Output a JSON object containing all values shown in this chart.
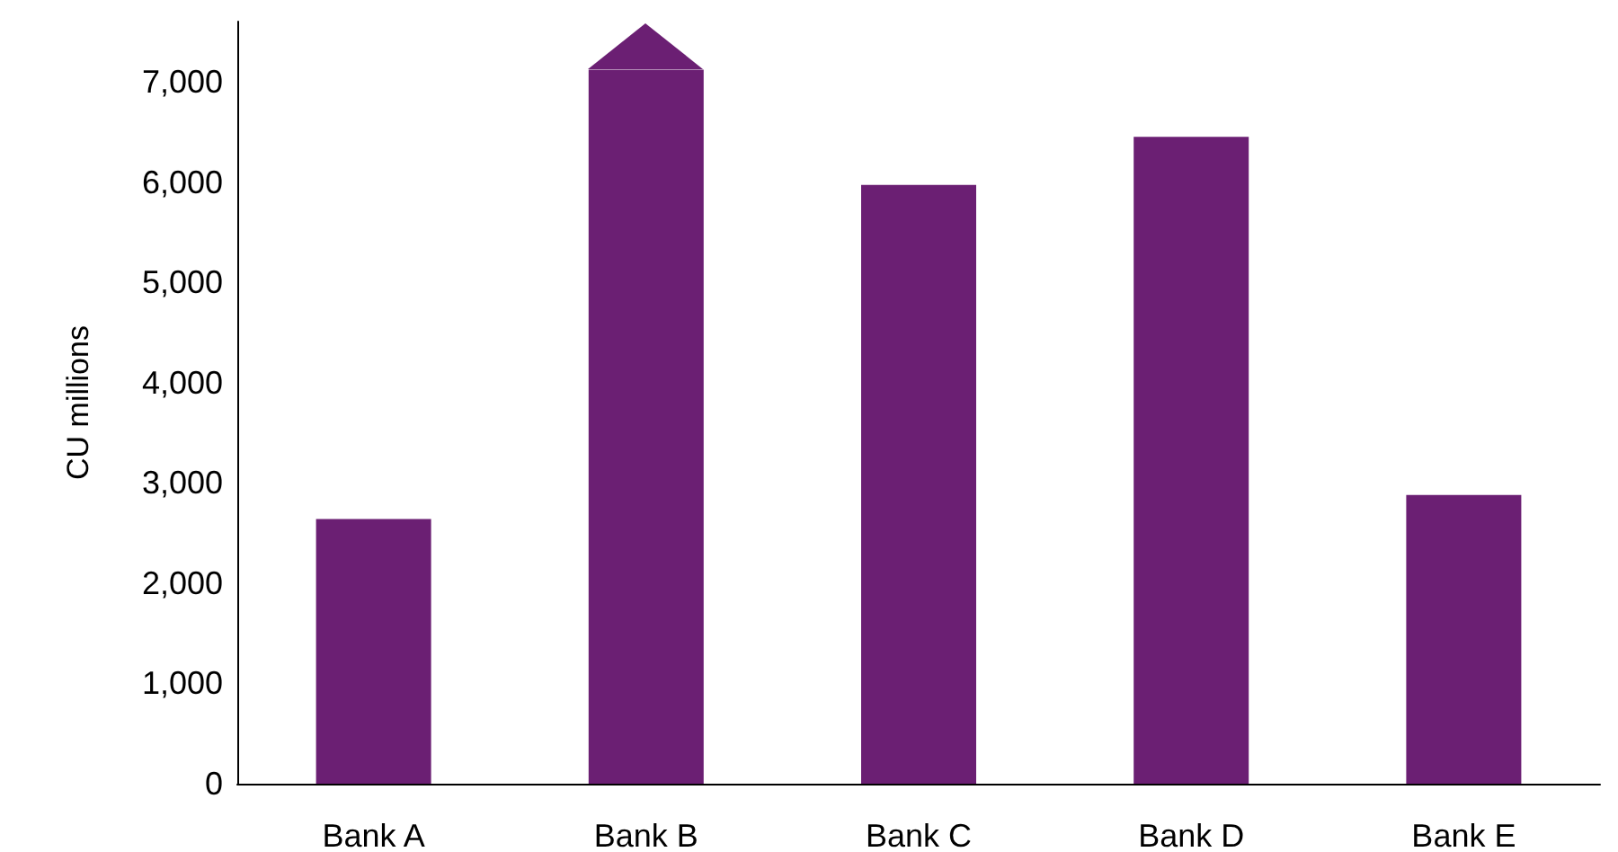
{
  "chart_data": {
    "type": "bar",
    "ylabel": "CU millions",
    "categories": [
      "Bank A",
      "Bank B",
      "Bank C",
      "Bank D",
      "Bank E"
    ],
    "values": [
      2640,
      7120,
      5970,
      6450,
      2880
    ],
    "color": "#6b1f73",
    "ylim": [
      0,
      7600
    ],
    "yticks": [
      0,
      {
        "value": 1000,
        "label": "1,000"
      },
      {
        "value": 2000,
        "label": "2,000"
      },
      {
        "value": 3000,
        "label": "3,000"
      },
      {
        "value": 4000,
        "label": "4,000"
      },
      {
        "value": 5000,
        "label": "5,000"
      },
      {
        "value": 6000,
        "label": "6,000"
      },
      {
        "value": 7000,
        "label": "7,000"
      }
    ],
    "grid": false
  }
}
